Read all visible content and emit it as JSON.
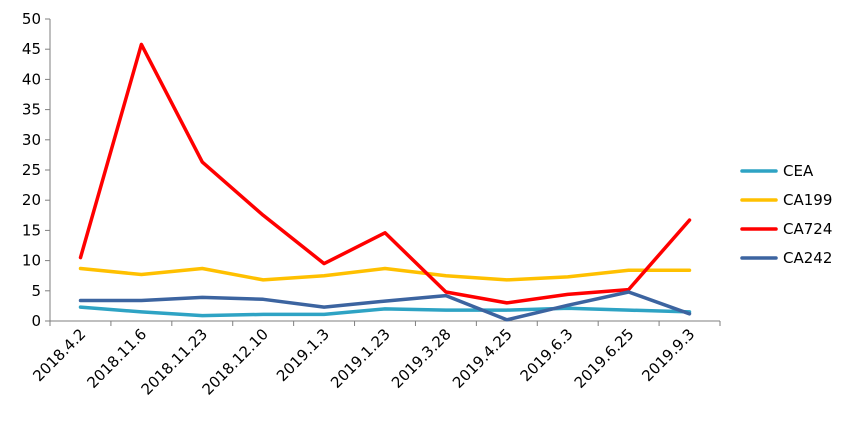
{
  "chart_data": {
    "type": "line",
    "title": "",
    "xlabel": "",
    "ylabel": "",
    "ylim": [
      0,
      50
    ],
    "yticks": [
      0,
      5,
      10,
      15,
      20,
      25,
      30,
      35,
      40,
      45,
      50
    ],
    "grid": false,
    "legend_position": "right",
    "categories": [
      "2018.4.2",
      "2018.11.6",
      "2018.11.23",
      "2018.12.10",
      "2019.1.3",
      "2019.1.23",
      "2019.3.28",
      "2019.4.25",
      "2019.6.3",
      "2019.6.25",
      "2019.9.3"
    ],
    "series": [
      {
        "name": "CEA",
        "color": "#2EA3C4",
        "values": [
          2.3,
          1.5,
          0.9,
          1.1,
          1.1,
          2.0,
          1.8,
          1.8,
          2.1,
          1.8,
          1.5
        ]
      },
      {
        "name": "CA199",
        "color": "#FFC000",
        "values": [
          8.7,
          7.7,
          8.7,
          6.8,
          7.5,
          8.7,
          7.5,
          6.8,
          7.3,
          8.4,
          8.4
        ]
      },
      {
        "name": "CA724",
        "color": "#FF0000",
        "values": [
          10.5,
          45.8,
          26.3,
          17.5,
          9.5,
          14.6,
          4.8,
          3.0,
          4.4,
          5.2,
          16.7
        ]
      },
      {
        "name": "CA242",
        "color": "#3C64A0",
        "values": [
          3.4,
          3.4,
          3.9,
          3.6,
          2.3,
          3.3,
          4.2,
          0.2,
          2.6,
          4.8,
          1.2
        ]
      }
    ]
  }
}
